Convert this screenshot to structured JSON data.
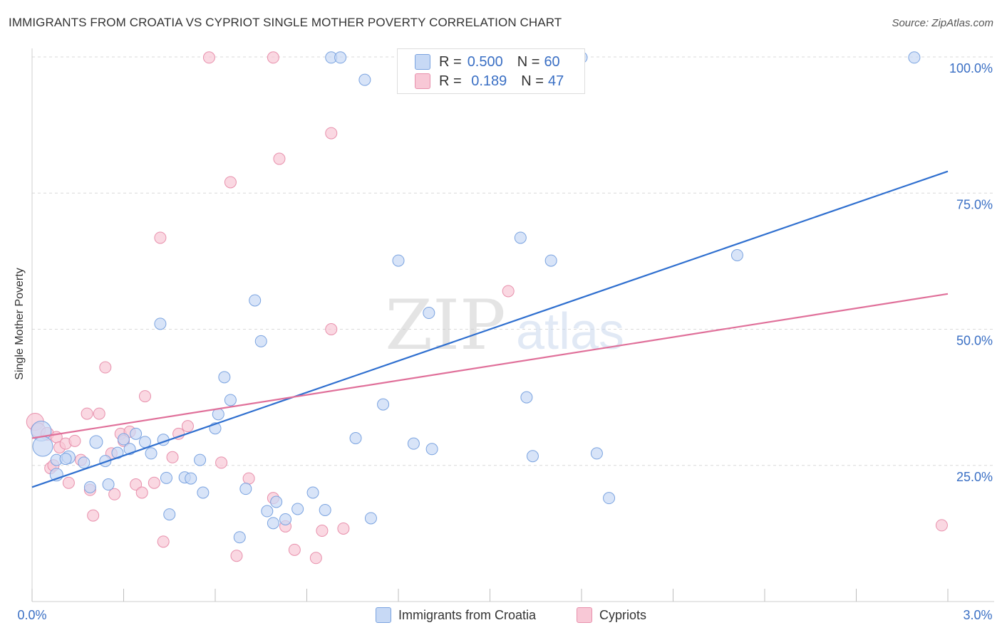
{
  "title": "IMMIGRANTS FROM CROATIA VS CYPRIOT SINGLE MOTHER POVERTY CORRELATION CHART",
  "source": "Source: ZipAtlas.com",
  "watermark": {
    "zip": "ZIP",
    "atlas": "atlas"
  },
  "legend": {
    "rows": [
      {
        "r_label": "R = ",
        "r_value": "0.500",
        "n_label": "N = ",
        "n_value": "60"
      },
      {
        "r_label": "R = ",
        "r_value": " 0.189",
        "n_label": "N = ",
        "n_value": "47"
      }
    ]
  },
  "colors": {
    "blue_fill": "#c7d9f5",
    "blue_stroke": "#7aa3e0",
    "blue_line": "#2f6fcf",
    "pink_fill": "#f8c8d6",
    "pink_stroke": "#e890ac",
    "pink_line": "#e0709a",
    "tick_text": "#3a6fc4",
    "grid": "#d9d9d9"
  },
  "chart_data": {
    "type": "scatter",
    "title": "IMMIGRANTS FROM CROATIA VS CYPRIOT SINGLE MOTHER POVERTY CORRELATION CHART",
    "xlabel": "",
    "ylabel": "Single Mother Poverty",
    "xlim": [
      0,
      3.0
    ],
    "ylim": [
      0,
      1.02
    ],
    "x_tick_labels": [
      "0.0%",
      "3.0%"
    ],
    "y_ticks": [
      0.25,
      0.5,
      0.75,
      1.0
    ],
    "y_tick_labels": [
      "25.0%",
      "50.0%",
      "75.0%",
      "100.0%"
    ],
    "grid": true,
    "legend_position": "top-center",
    "series": [
      {
        "name": "Immigrants from Croatia",
        "color": "#7aa3e0",
        "trend": {
          "x": [
            0,
            3.0
          ],
          "y": [
            0.21,
            0.79
          ]
        },
        "points": [
          {
            "x": 0.03,
            "y": 0.313,
            "s": 14
          },
          {
            "x": 0.035,
            "y": 0.285,
            "s": 14
          },
          {
            "x": 0.08,
            "y": 0.233,
            "s": 9
          },
          {
            "x": 0.08,
            "y": 0.26,
            "s": 8
          },
          {
            "x": 0.12,
            "y": 0.265,
            "s": 9
          },
          {
            "x": 0.17,
            "y": 0.255,
            "s": 8
          },
          {
            "x": 0.19,
            "y": 0.21,
            "s": 8
          },
          {
            "x": 0.21,
            "y": 0.293,
            "s": 9
          },
          {
            "x": 0.24,
            "y": 0.258,
            "s": 8
          },
          {
            "x": 0.25,
            "y": 0.215,
            "s": 8
          },
          {
            "x": 0.28,
            "y": 0.273,
            "s": 8
          },
          {
            "x": 0.3,
            "y": 0.298,
            "s": 8
          },
          {
            "x": 0.32,
            "y": 0.28,
            "s": 8
          },
          {
            "x": 0.34,
            "y": 0.308,
            "s": 8
          },
          {
            "x": 0.37,
            "y": 0.293,
            "s": 8
          },
          {
            "x": 0.39,
            "y": 0.272,
            "s": 8
          },
          {
            "x": 0.42,
            "y": 0.51,
            "s": 8
          },
          {
            "x": 0.43,
            "y": 0.297,
            "s": 8
          },
          {
            "x": 0.44,
            "y": 0.227,
            "s": 8
          },
          {
            "x": 0.45,
            "y": 0.16,
            "s": 8
          },
          {
            "x": 0.5,
            "y": 0.228,
            "s": 8
          },
          {
            "x": 0.52,
            "y": 0.226,
            "s": 8
          },
          {
            "x": 0.55,
            "y": 0.26,
            "s": 8
          },
          {
            "x": 0.56,
            "y": 0.2,
            "s": 8
          },
          {
            "x": 0.6,
            "y": 0.318,
            "s": 8
          },
          {
            "x": 0.61,
            "y": 0.344,
            "s": 8
          },
          {
            "x": 0.63,
            "y": 0.412,
            "s": 8
          },
          {
            "x": 0.65,
            "y": 0.37,
            "s": 8
          },
          {
            "x": 0.68,
            "y": 0.118,
            "s": 8
          },
          {
            "x": 0.7,
            "y": 0.207,
            "s": 8
          },
          {
            "x": 0.73,
            "y": 0.553,
            "s": 8
          },
          {
            "x": 0.75,
            "y": 0.478,
            "s": 8
          },
          {
            "x": 0.77,
            "y": 0.166,
            "s": 8
          },
          {
            "x": 0.79,
            "y": 0.144,
            "s": 8
          },
          {
            "x": 0.8,
            "y": 0.183,
            "s": 8
          },
          {
            "x": 0.83,
            "y": 0.151,
            "s": 8
          },
          {
            "x": 0.87,
            "y": 0.17,
            "s": 8
          },
          {
            "x": 0.92,
            "y": 0.2,
            "s": 8
          },
          {
            "x": 0.96,
            "y": 0.168,
            "s": 8
          },
          {
            "x": 0.98,
            "y": 0.999,
            "s": 8
          },
          {
            "x": 1.01,
            "y": 0.999,
            "s": 8
          },
          {
            "x": 1.06,
            "y": 0.3,
            "s": 8
          },
          {
            "x": 1.09,
            "y": 0.958,
            "s": 8
          },
          {
            "x": 1.11,
            "y": 0.153,
            "s": 8
          },
          {
            "x": 1.15,
            "y": 0.362,
            "s": 8
          },
          {
            "x": 1.2,
            "y": 0.626,
            "s": 8
          },
          {
            "x": 1.25,
            "y": 0.29,
            "s": 8
          },
          {
            "x": 1.3,
            "y": 0.53,
            "s": 8
          },
          {
            "x": 1.31,
            "y": 0.28,
            "s": 8
          },
          {
            "x": 1.6,
            "y": 0.999,
            "s": 8
          },
          {
            "x": 1.62,
            "y": 0.375,
            "s": 8
          },
          {
            "x": 1.6,
            "y": 0.668,
            "s": 8
          },
          {
            "x": 1.64,
            "y": 0.267,
            "s": 8
          },
          {
            "x": 1.7,
            "y": 0.626,
            "s": 8
          },
          {
            "x": 1.8,
            "y": 0.999,
            "s": 8
          },
          {
            "x": 1.89,
            "y": 0.19,
            "s": 8
          },
          {
            "x": 1.85,
            "y": 0.272,
            "s": 8
          },
          {
            "x": 2.31,
            "y": 0.636,
            "s": 8
          },
          {
            "x": 2.89,
            "y": 0.999,
            "s": 8
          },
          {
            "x": 0.11,
            "y": 0.262,
            "s": 8
          }
        ]
      },
      {
        "name": "Cypriots",
        "color": "#e890ac",
        "trend": {
          "x": [
            0,
            3.0
          ],
          "y": [
            0.3,
            0.565
          ]
        },
        "points": [
          {
            "x": 0.01,
            "y": 0.33,
            "s": 12
          },
          {
            "x": 0.02,
            "y": 0.315,
            "s": 10
          },
          {
            "x": 0.05,
            "y": 0.308,
            "s": 9
          },
          {
            "x": 0.06,
            "y": 0.245,
            "s": 8
          },
          {
            "x": 0.07,
            "y": 0.25,
            "s": 8
          },
          {
            "x": 0.08,
            "y": 0.302,
            "s": 8
          },
          {
            "x": 0.09,
            "y": 0.283,
            "s": 8
          },
          {
            "x": 0.11,
            "y": 0.29,
            "s": 8
          },
          {
            "x": 0.12,
            "y": 0.218,
            "s": 8
          },
          {
            "x": 0.14,
            "y": 0.295,
            "s": 8
          },
          {
            "x": 0.16,
            "y": 0.26,
            "s": 8
          },
          {
            "x": 0.18,
            "y": 0.345,
            "s": 8
          },
          {
            "x": 0.19,
            "y": 0.205,
            "s": 8
          },
          {
            "x": 0.2,
            "y": 0.158,
            "s": 8
          },
          {
            "x": 0.22,
            "y": 0.345,
            "s": 8
          },
          {
            "x": 0.24,
            "y": 0.43,
            "s": 8
          },
          {
            "x": 0.26,
            "y": 0.272,
            "s": 8
          },
          {
            "x": 0.27,
            "y": 0.197,
            "s": 8
          },
          {
            "x": 0.29,
            "y": 0.308,
            "s": 8
          },
          {
            "x": 0.3,
            "y": 0.295,
            "s": 8
          },
          {
            "x": 0.32,
            "y": 0.312,
            "s": 8
          },
          {
            "x": 0.34,
            "y": 0.215,
            "s": 8
          },
          {
            "x": 0.36,
            "y": 0.2,
            "s": 8
          },
          {
            "x": 0.37,
            "y": 0.377,
            "s": 8
          },
          {
            "x": 0.4,
            "y": 0.218,
            "s": 8
          },
          {
            "x": 0.42,
            "y": 0.668,
            "s": 8
          },
          {
            "x": 0.43,
            "y": 0.11,
            "s": 8
          },
          {
            "x": 0.46,
            "y": 0.265,
            "s": 8
          },
          {
            "x": 0.48,
            "y": 0.308,
            "s": 8
          },
          {
            "x": 0.51,
            "y": 0.322,
            "s": 8
          },
          {
            "x": 0.58,
            "y": 0.999,
            "s": 8
          },
          {
            "x": 0.62,
            "y": 0.255,
            "s": 8
          },
          {
            "x": 0.65,
            "y": 0.77,
            "s": 8
          },
          {
            "x": 0.67,
            "y": 0.084,
            "s": 8
          },
          {
            "x": 0.71,
            "y": 0.226,
            "s": 8
          },
          {
            "x": 0.79,
            "y": 0.999,
            "s": 8
          },
          {
            "x": 0.79,
            "y": 0.19,
            "s": 8
          },
          {
            "x": 0.81,
            "y": 0.813,
            "s": 8
          },
          {
            "x": 0.83,
            "y": 0.138,
            "s": 8
          },
          {
            "x": 0.86,
            "y": 0.095,
            "s": 8
          },
          {
            "x": 0.93,
            "y": 0.08,
            "s": 8
          },
          {
            "x": 0.95,
            "y": 0.13,
            "s": 8
          },
          {
            "x": 0.98,
            "y": 0.5,
            "s": 8
          },
          {
            "x": 0.98,
            "y": 0.86,
            "s": 8
          },
          {
            "x": 1.02,
            "y": 0.134,
            "s": 8
          },
          {
            "x": 1.56,
            "y": 0.57,
            "s": 8
          },
          {
            "x": 2.98,
            "y": 0.14,
            "s": 8
          }
        ]
      }
    ]
  },
  "bottom_legend": [
    {
      "label": "Immigrants from Croatia"
    },
    {
      "label": "Cypriots"
    }
  ]
}
